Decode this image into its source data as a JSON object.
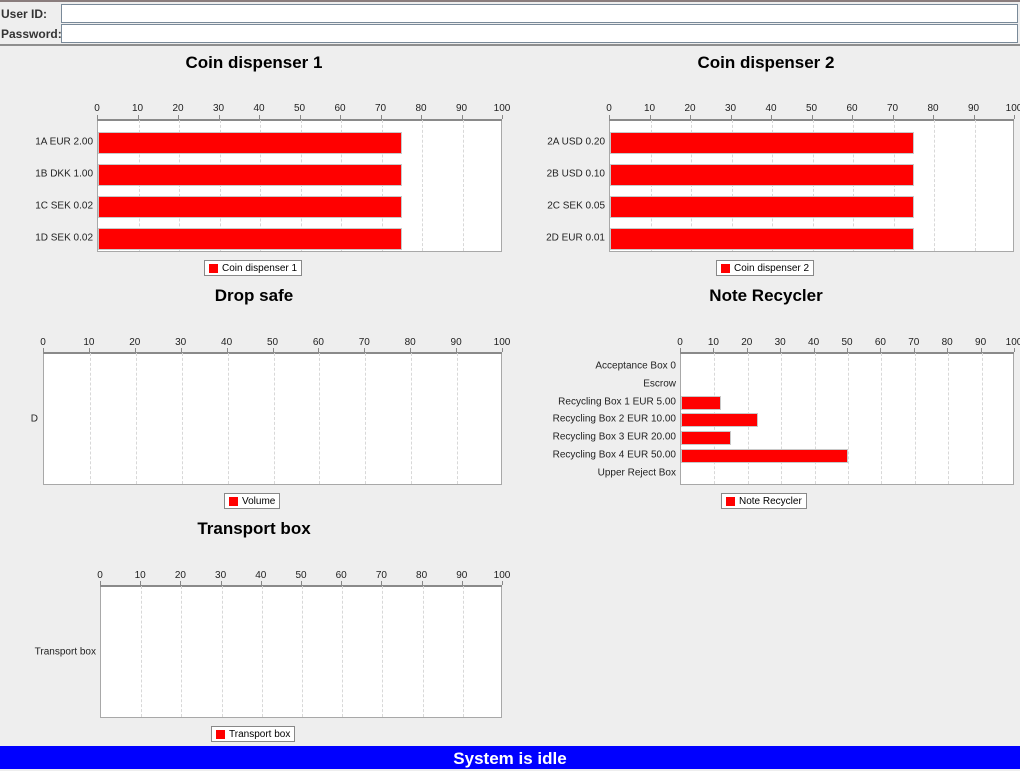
{
  "login": {
    "user_id_label": "User ID:",
    "user_id_value": "",
    "password_label": "Password:",
    "password_value": ""
  },
  "status_bar": {
    "text": "System is idle",
    "background": "#0000ff"
  },
  "colors": {
    "bar": "#ff0000"
  },
  "chart_data": [
    {
      "id": "coin1",
      "type": "bar",
      "orientation": "horizontal",
      "title": "Coin dispenser 1",
      "categories": [
        "1A EUR 2.00",
        "1B DKK 1.00",
        "1C SEK 0.02",
        "1D SEK 0.02"
      ],
      "values": [
        75,
        75,
        75,
        75
      ],
      "legend": "Coin dispenser 1",
      "xlim": [
        0,
        100
      ],
      "ticks": [
        0,
        10,
        20,
        30,
        40,
        50,
        60,
        70,
        80,
        90,
        100
      ],
      "grid": true,
      "legend_position": "bottom"
    },
    {
      "id": "coin2",
      "type": "bar",
      "orientation": "horizontal",
      "title": "Coin dispenser 2",
      "categories": [
        "2A USD 0.20",
        "2B USD 0.10",
        "2C SEK 0.05",
        "2D EUR 0.01"
      ],
      "values": [
        75,
        75,
        75,
        75
      ],
      "legend": "Coin dispenser 2",
      "xlim": [
        0,
        100
      ],
      "ticks": [
        0,
        10,
        20,
        30,
        40,
        50,
        60,
        70,
        80,
        90,
        100
      ],
      "grid": true,
      "legend_position": "bottom"
    },
    {
      "id": "dropsafe",
      "type": "bar",
      "orientation": "horizontal",
      "title": "Drop safe",
      "categories": [
        "D"
      ],
      "values": [
        0
      ],
      "legend": "Volume",
      "xlim": [
        0,
        100
      ],
      "ticks": [
        0,
        10,
        20,
        30,
        40,
        50,
        60,
        70,
        80,
        90,
        100
      ],
      "grid": true,
      "legend_position": "bottom"
    },
    {
      "id": "recycler",
      "type": "bar",
      "orientation": "horizontal",
      "title": "Note Recycler",
      "categories": [
        "Acceptance Box 0",
        "Escrow",
        "Recycling Box 1 EUR 5.00",
        "Recycling Box 2 EUR 10.00",
        "Recycling Box 3 EUR 20.00",
        "Recycling Box 4 EUR 50.00",
        "Upper Reject Box"
      ],
      "values": [
        0,
        0,
        12,
        23,
        15,
        50,
        0
      ],
      "legend": "Note Recycler",
      "xlim": [
        0,
        100
      ],
      "ticks": [
        0,
        10,
        20,
        30,
        40,
        50,
        60,
        70,
        80,
        90,
        100
      ],
      "grid": true,
      "legend_position": "bottom"
    },
    {
      "id": "transport",
      "type": "bar",
      "orientation": "horizontal",
      "title": "Transport box",
      "categories": [
        "Transport box"
      ],
      "values": [
        0
      ],
      "legend": "Transport box",
      "xlim": [
        0,
        100
      ],
      "ticks": [
        0,
        10,
        20,
        30,
        40,
        50,
        60,
        70,
        80,
        90,
        100
      ],
      "grid": true,
      "legend_position": "bottom"
    }
  ]
}
